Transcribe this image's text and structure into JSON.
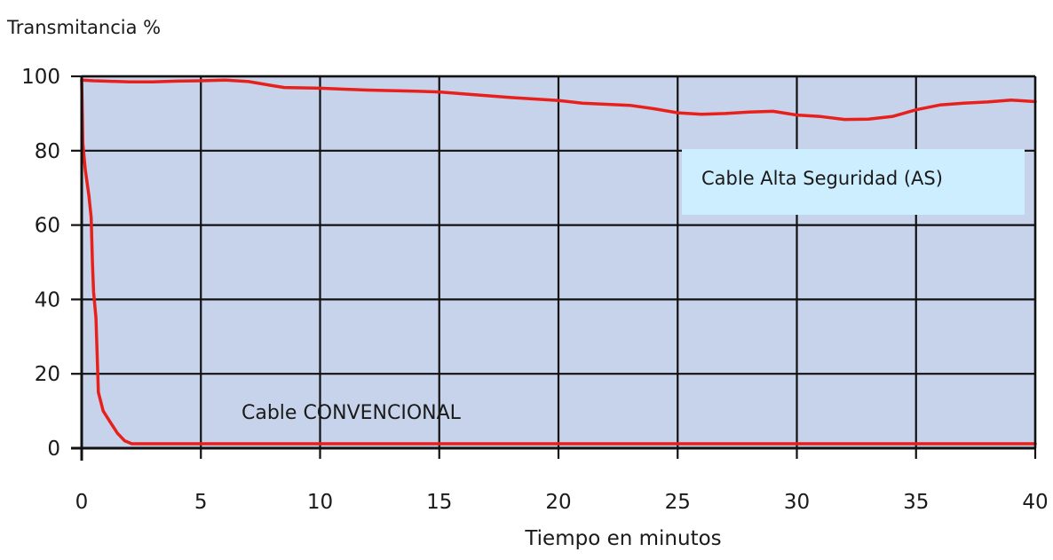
{
  "chart_data": {
    "type": "line",
    "ylabel": "Transmitancia %",
    "xlabel": "Tiempo en minutos",
    "xlim": [
      0,
      40
    ],
    "ylim": [
      0,
      100
    ],
    "x_ticks": [
      0,
      5,
      10,
      15,
      20,
      25,
      30,
      35,
      40
    ],
    "y_ticks": [
      0,
      20,
      40,
      60,
      80,
      100
    ],
    "grid": true,
    "colors": {
      "plot_background": "#c6d3ea",
      "grid": "#111111",
      "series": "#e8201c",
      "annotation_box": "#cdeeff",
      "text": "#1a1a1a"
    },
    "series": [
      {
        "name": "Cable Alta Seguridad (AS)",
        "points": [
          [
            0,
            99
          ],
          [
            0.5,
            98.8
          ],
          [
            1,
            98.7
          ],
          [
            2,
            98.5
          ],
          [
            3,
            98.5
          ],
          [
            4,
            98.7
          ],
          [
            5,
            98.8
          ],
          [
            6,
            99
          ],
          [
            7,
            98.6
          ],
          [
            8,
            97.5
          ],
          [
            8.5,
            97
          ],
          [
            10,
            96.8
          ],
          [
            12,
            96.3
          ],
          [
            14,
            96
          ],
          [
            15,
            95.8
          ],
          [
            16,
            95.3
          ],
          [
            18,
            94.3
          ],
          [
            20,
            93.5
          ],
          [
            21,
            92.8
          ],
          [
            23,
            92.2
          ],
          [
            24,
            91.3
          ],
          [
            25,
            90.2
          ],
          [
            26,
            89.8
          ],
          [
            27,
            90
          ],
          [
            28,
            90.4
          ],
          [
            29,
            90.6
          ],
          [
            30,
            89.6
          ],
          [
            31,
            89.2
          ],
          [
            32,
            88.4
          ],
          [
            33,
            88.5
          ],
          [
            34,
            89.2
          ],
          [
            35,
            91
          ],
          [
            36,
            92.3
          ],
          [
            37,
            92.8
          ],
          [
            38,
            93.1
          ],
          [
            39,
            93.6
          ],
          [
            40,
            93.2
          ]
        ]
      },
      {
        "name": "Cable CONVENCIONAL",
        "points": [
          [
            0,
            99
          ],
          [
            0.05,
            82
          ],
          [
            0.15,
            75
          ],
          [
            0.3,
            68
          ],
          [
            0.4,
            62
          ],
          [
            0.45,
            50
          ],
          [
            0.5,
            42
          ],
          [
            0.6,
            35
          ],
          [
            0.7,
            15
          ],
          [
            0.9,
            10
          ],
          [
            1.2,
            7
          ],
          [
            1.5,
            4
          ],
          [
            1.8,
            2
          ],
          [
            2.1,
            1.2
          ],
          [
            5,
            1.2
          ],
          [
            10,
            1.2
          ],
          [
            20,
            1.2
          ],
          [
            30,
            1.2
          ],
          [
            40,
            1.2
          ]
        ]
      }
    ],
    "annotations": [
      {
        "text": "Cable Alta Seguridad (AS)",
        "boxed": true
      },
      {
        "text": "Cable CONVENCIONAL",
        "boxed": false
      }
    ]
  }
}
